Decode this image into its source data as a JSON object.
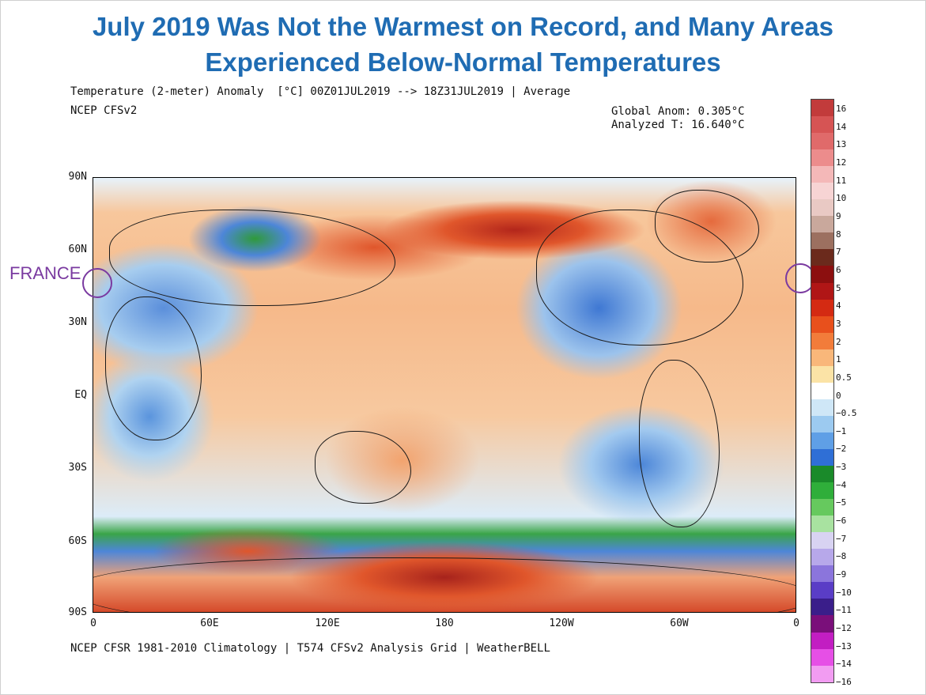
{
  "headline": {
    "line1": "July 2019 Was Not the Warmest on Record, and Many Areas",
    "line2": "Experienced Below-Normal Temperatures"
  },
  "map": {
    "title_line": "Temperature (2-meter) Anomaly  [°C] 00Z01JUL2019 --> 18Z31JUL2019 | Average",
    "source_line": "NCEP CFSv2",
    "global_anom": "Global Anom: 0.305°C",
    "analyzed_t": "Analyzed T: 16.640°C",
    "footer": "NCEP CFSR 1981-2010 Climatology | T574 CFSv2 Analysis Grid | WeatherBELL",
    "lat_labels": [
      "90N",
      "60N",
      "30N",
      "EQ",
      "30S",
      "60S",
      "90S"
    ],
    "lon_labels": [
      "0",
      "60E",
      "120E",
      "180",
      "120W",
      "60W",
      "0"
    ],
    "annotation": "FRANCE",
    "annotation_color": "#7a3aa0"
  },
  "colorbar": {
    "labels": [
      "16",
      "14",
      "13",
      "12",
      "11",
      "10",
      "9",
      "8",
      "7",
      "6",
      "5",
      "4",
      "3",
      "2",
      "1",
      "0.5",
      "0",
      "−0.5",
      "−1",
      "−2",
      "−3",
      "−4",
      "−5",
      "−6",
      "−7",
      "−8",
      "−9",
      "−10",
      "−11",
      "−12",
      "−13",
      "−14",
      "−16"
    ],
    "colors": [
      "#c23b3b",
      "#d65454",
      "#e06a6a",
      "#ec8c8c",
      "#f4b8b8",
      "#f7d4d4",
      "#e9c9c4",
      "#c9a89c",
      "#9c7060",
      "#6b2a1c",
      "#8c0f0f",
      "#b01616",
      "#d42a12",
      "#e8501c",
      "#f27c3a",
      "#f9b77a",
      "#fbe3a6",
      "#ffffff",
      "#cfe7f7",
      "#9ccaf0",
      "#5f9fe6",
      "#2f6fd6",
      "#1a8a2a",
      "#2fae3a",
      "#66c95e",
      "#a8e2a0",
      "#d8d3f2",
      "#b7a8ea",
      "#8b75dc",
      "#5a3dc6",
      "#3a1e8a",
      "#7a0f7a",
      "#c21ec2",
      "#e64fe6",
      "#f29cf2"
    ]
  }
}
